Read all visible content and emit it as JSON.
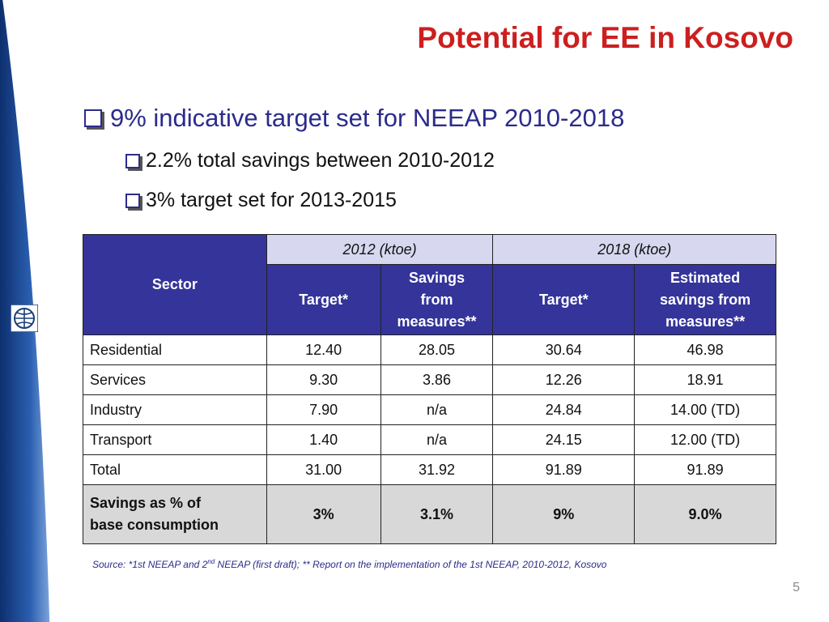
{
  "slide": {
    "title": "Potential for EE in Kosovo",
    "page_number": "5"
  },
  "bullets": {
    "main": "9% indicative target set for NEEAP 2010-2018",
    "sub": [
      "2.2% total savings between 2010-2012",
      "3% target set for 2013-2015"
    ]
  },
  "table": {
    "sector_header": "Sector",
    "group_headers": [
      "2012 (ktoe)",
      "2018 (ktoe)"
    ],
    "col_2012_target": "Target*",
    "col_2012_savings": [
      "Savings",
      "from",
      "measures**"
    ],
    "col_2018_target": "Target*",
    "col_2018_savings": [
      "Estimated",
      "savings from",
      "measures**"
    ],
    "rows": [
      {
        "sector": "Residential",
        "t2012": "12.40",
        "s2012": "28.05",
        "t2018": "30.64",
        "s2018": "46.98"
      },
      {
        "sector": "Services",
        "t2012": "9.30",
        "s2012": "3.86",
        "t2018": "12.26",
        "s2018": "18.91"
      },
      {
        "sector": "Industry",
        "t2012": "7.90",
        "s2012": "n/a",
        "t2018": "24.84",
        "s2018": "14.00 (TD)"
      },
      {
        "sector": "Transport",
        "t2012": "1.40",
        "s2012": "n/a",
        "t2018": "24.15",
        "s2018": "12.00 (TD)"
      },
      {
        "sector": "Total",
        "t2012": "31.00",
        "s2012": "31.92",
        "t2018": "91.89",
        "s2018": "91.89"
      }
    ],
    "summary_row": {
      "label": [
        "Savings as % of",
        "base consumption"
      ],
      "t2012": "3%",
      "s2012": "3.1%",
      "t2018": "9%",
      "s2018": "9.0%"
    }
  },
  "source": {
    "prefix": "Source: *1st NEEAP and 2",
    "sup": "nd",
    "suffix": " NEEAP (first draft); ** Report on the implementation of the 1st NEEAP, 2010-2012, Kosovo"
  },
  "colors": {
    "title": "#cc1f1f",
    "header_blue": "#34349a",
    "header_light": "#d7d7f0",
    "summary_gray": "#d8d8d8",
    "bullet_text": "#2b2b8c"
  },
  "icons": [
    "square-bullet-icon",
    "world-bank-logo"
  ]
}
